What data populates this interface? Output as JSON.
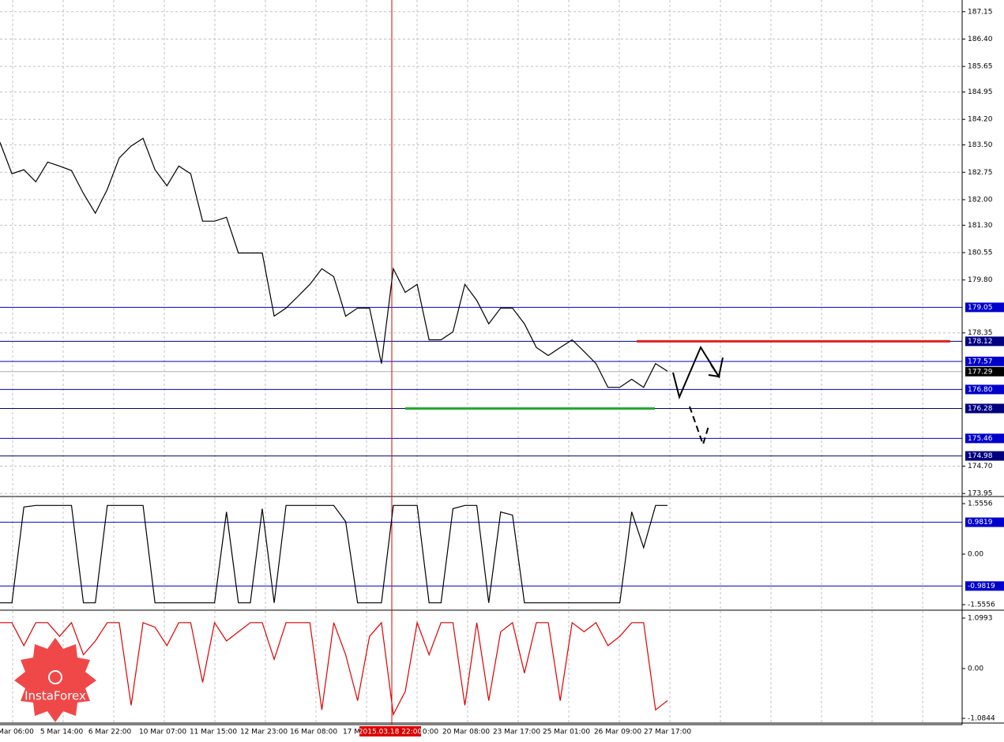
{
  "chart_data": [
    {
      "type": "line",
      "series": [
        {
          "color": "#000000",
          "values": [
            183.57,
            182.71,
            182.82,
            182.49,
            183.03,
            182.92,
            182.8,
            182.17,
            181.63,
            182.28,
            183.14,
            183.47,
            183.68,
            182.82,
            182.38,
            182.92,
            182.71,
            181.41,
            181.41,
            181.52,
            180.54,
            180.54,
            180.54,
            178.81,
            179.03,
            179.35,
            179.68,
            180.11,
            179.89,
            178.81,
            179.03,
            179.03,
            177.51,
            180.11,
            179.46,
            179.68,
            178.16,
            178.16,
            178.38,
            179.68,
            179.24,
            178.6,
            179.03,
            179.03,
            178.6,
            177.95,
            177.73,
            177.95,
            178.16,
            177.84,
            177.51,
            176.86,
            176.86,
            177.08,
            176.86,
            177.51,
            177.3
          ]
        }
      ],
      "ylim": [
        173.89,
        187.47
      ],
      "yticks": [
        187.15,
        {
          "value": 186.4,
          "label": "186.40"
        },
        185.65,
        184.95,
        {
          "value": 184.2,
          "label": "184.20"
        },
        {
          "value": 183.5,
          "label": "183.50"
        },
        182.75,
        {
          "value": 182,
          "label": "182.00"
        },
        {
          "value": 181.3,
          "label": "181.30"
        },
        180.55,
        {
          "value": 179.8,
          "label": "179.80"
        },
        178.35,
        {
          "value": 174.7,
          "label": "174.70"
        },
        173.95
      ],
      "grid": true,
      "levels": [
        {
          "value": 179.05,
          "label": "179.05",
          "color": "#0000cc"
        },
        {
          "value": 178.12,
          "label": "178.12",
          "color": "#000080",
          "segment_color": "#e02020"
        },
        {
          "value": 177.57,
          "label": "177.57",
          "color": "#0000cc"
        },
        {
          "value": 176.8,
          "label": "176.80",
          "color": "#0000cc"
        },
        {
          "value": 176.28,
          "label": "176.28",
          "color": "#000080",
          "segment_color": "#22aa33"
        },
        {
          "value": 175.46,
          "label": "175.46",
          "color": "#0000cc"
        },
        {
          "value": 174.98,
          "label": "174.98",
          "color": "#000080"
        }
      ],
      "current_price": 177.29,
      "xtick_labels": [
        "Mar 06:00",
        "5 Mar 14:00",
        "6 Mar 22:00",
        "10 Mar 07:00",
        "11 Mar 15:00",
        "12 Mar 23:00",
        "16 Mar 08:00",
        "17 M",
        "0:00",
        "20 Mar 08:00",
        "23 Mar 17:00",
        "25 Mar 01:00",
        "26 Mar 09:00",
        "27 Mar 17:00"
      ],
      "cursor_label": "2015.03.18 22:00",
      "watermark": "InstaForex"
    },
    {
      "type": "line",
      "series": [
        {
          "color": "#000000",
          "values": [
            -1.5,
            -1.5,
            1.45,
            1.5,
            1.5,
            1.5,
            1.5,
            -1.5,
            -1.5,
            1.5,
            1.5,
            1.5,
            1.5,
            -1.5,
            -1.5,
            -1.5,
            -1.5,
            -1.5,
            -1.5,
            1.3,
            -1.5,
            -1.5,
            1.4,
            -1.5,
            1.5,
            1.5,
            1.5,
            1.5,
            1.5,
            1.0,
            -1.5,
            -1.5,
            -1.5,
            1.5,
            1.5,
            1.5,
            -1.5,
            -1.5,
            1.4,
            1.5,
            1.5,
            -1.5,
            1.3,
            1.2,
            -1.5,
            -1.5,
            -1.5,
            -1.5,
            -1.5,
            -1.5,
            -1.5,
            -1.5,
            -1.5,
            1.3,
            0.2,
            1.5,
            1.5
          ]
        }
      ],
      "ylim": [
        -1.7014,
        1.7014
      ],
      "yticks": [
        1.5556,
        {
          "value": 0,
          "label": "0.00"
        },
        -1.5556
      ],
      "levels": [
        {
          "value": 0.9819,
          "color": "#0000cc"
        },
        {
          "value": -0.9819,
          "color": "#0000cc"
        }
      ]
    },
    {
      "type": "line",
      "series": [
        {
          "color": "#dd0000",
          "values": [
            1.0,
            1.0,
            0.5,
            1.0,
            1.0,
            0.7,
            1.0,
            0.3,
            0.6,
            1.0,
            1.0,
            -0.8,
            1.0,
            0.9,
            0.5,
            1.0,
            1.0,
            -0.3,
            1.0,
            0.6,
            0.8,
            1.0,
            1.0,
            0.2,
            1.0,
            1.0,
            1.0,
            -0.9,
            1.0,
            0.3,
            -0.7,
            0.7,
            1.0,
            -1.0,
            -0.5,
            1.0,
            0.3,
            1.0,
            1.0,
            -0.8,
            1.0,
            -0.7,
            0.8,
            1.0,
            -0.1,
            1.0,
            1.0,
            -0.7,
            1.0,
            0.8,
            1.0,
            0.5,
            0.7,
            1.0,
            1.0,
            -0.9,
            -0.7
          ]
        }
      ],
      "ylim": [
        -1.1704,
        1.2369
      ],
      "yticks": [
        1.0993,
        {
          "value": 0,
          "label": "0.00"
        },
        -1.0844
      ]
    }
  ]
}
